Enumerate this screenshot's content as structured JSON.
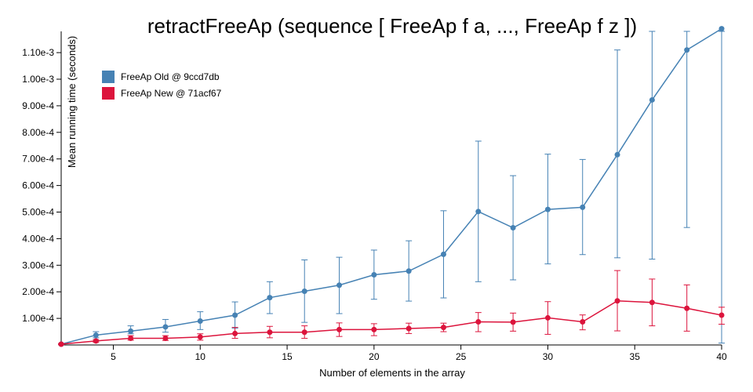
{
  "chart_data": {
    "type": "line",
    "title": "retractFreeAp (sequence [ FreeAp f a, ..., FreeAp f z ])",
    "xlabel": "Number of elements in the array",
    "ylabel": "Mean running time (seconds)",
    "xlim": [
      2,
      40
    ],
    "ylim": [
      0,
      0.00118
    ],
    "x_ticks": [
      5,
      10,
      15,
      20,
      25,
      30,
      35,
      40
    ],
    "x_tick_labels": [
      "5",
      "10",
      "15",
      "20",
      "25",
      "30",
      "35",
      "40"
    ],
    "y_ticks": [
      0.0001,
      0.0002,
      0.0003,
      0.0004,
      0.0005,
      0.0006,
      0.0007,
      0.0008,
      0.0009,
      0.001,
      0.0011
    ],
    "y_tick_labels": [
      "1.00e-4",
      "2.00e-4",
      "3.00e-4",
      "4.00e-4",
      "5.00e-4",
      "6.00e-4",
      "7.00e-4",
      "8.00e-4",
      "9.00e-4",
      "1.00e-3",
      "1.10e-3"
    ],
    "legend_position": "top-left",
    "error_bars": true,
    "x": [
      2,
      4,
      6,
      8,
      10,
      12,
      14,
      16,
      18,
      20,
      22,
      24,
      26,
      28,
      30,
      32,
      34,
      36,
      38,
      40
    ],
    "series": [
      {
        "name": "FreeAp Old @ 9ccd7db",
        "color": "#4682b4",
        "values": [
          3e-06,
          3.7e-05,
          5.2e-05,
          6.8e-05,
          9e-05,
          0.000112,
          0.000178,
          0.000202,
          0.000225,
          0.000264,
          0.000278,
          0.000341,
          0.000502,
          0.000441,
          0.00051,
          0.000518,
          0.000716,
          0.000922,
          0.00111,
          0.00119
        ],
        "err_low": [
          1e-06,
          2.7e-05,
          4.2e-05,
          4.8e-05,
          5.8e-05,
          6.3e-05,
          0.000118,
          8.5e-05,
          0.000118,
          0.000172,
          0.000165,
          0.000177,
          0.000238,
          0.000245,
          0.000305,
          0.00034,
          0.000328,
          0.000323,
          0.000442,
          7e-06
        ],
        "err_high": [
          5e-06,
          5e-05,
          7.2e-05,
          9.6e-05,
          0.000125,
          0.000162,
          0.000238,
          0.00032,
          0.00033,
          0.000357,
          0.000392,
          0.000505,
          0.000767,
          0.000637,
          0.000718,
          0.000698,
          0.00111,
          0.00118,
          0.00118,
          0.00118
        ]
      },
      {
        "name": "FreeAp New @ 71acf67",
        "color": "#dc143c",
        "values": [
          3e-06,
          1.5e-05,
          2.5e-05,
          2.5e-05,
          3e-05,
          4.3e-05,
          4.8e-05,
          4.8e-05,
          5.8e-05,
          5.8e-05,
          6.2e-05,
          6.6e-05,
          8.7e-05,
          8.6e-05,
          0.000102,
          8.7e-05,
          0.000166,
          0.00016,
          0.000138,
          0.000112
        ],
        "err_low": [
          1e-06,
          1e-05,
          1.8e-05,
          1.7e-05,
          1.8e-05,
          2.5e-05,
          2.7e-05,
          2.5e-05,
          3.2e-05,
          3.5e-05,
          4.3e-05,
          5e-05,
          5e-05,
          5.2e-05,
          4e-05,
          5.7e-05,
          5.3e-05,
          7.2e-05,
          5.2e-05,
          7.8e-05
        ],
        "err_high": [
          5e-06,
          2e-05,
          3.5e-05,
          3.5e-05,
          4.2e-05,
          6.6e-05,
          7e-05,
          7.2e-05,
          8.3e-05,
          8e-05,
          8.2e-05,
          8.2e-05,
          0.000122,
          0.00012,
          0.000163,
          0.000113,
          0.00028,
          0.000248,
          0.000226,
          0.000142
        ]
      }
    ]
  }
}
